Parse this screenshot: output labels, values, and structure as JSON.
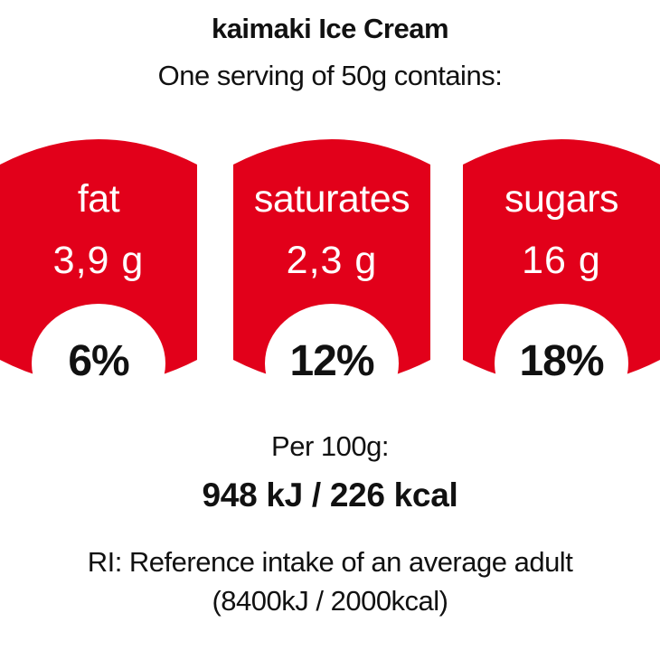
{
  "header": {
    "title": "kaimaki Ice Cream",
    "subtitle": "One serving of 50g contains:"
  },
  "colors": {
    "badge_red": "#E2001A",
    "text": "#111111",
    "background": "#FFFFFF"
  },
  "nutrients": [
    {
      "label": "fat",
      "amount": "3,9 g",
      "percent": "6%"
    },
    {
      "label": "saturates",
      "amount": "2,3 g",
      "percent": "12%"
    },
    {
      "label": "sugars",
      "amount": "16 g",
      "percent": "18%"
    }
  ],
  "energy": {
    "label": "Per 100g:",
    "value": "948 kJ / 226 kcal"
  },
  "reference": {
    "line1": "RI: Reference intake of an average adult",
    "line2": "(8400kJ / 2000kcal)"
  }
}
